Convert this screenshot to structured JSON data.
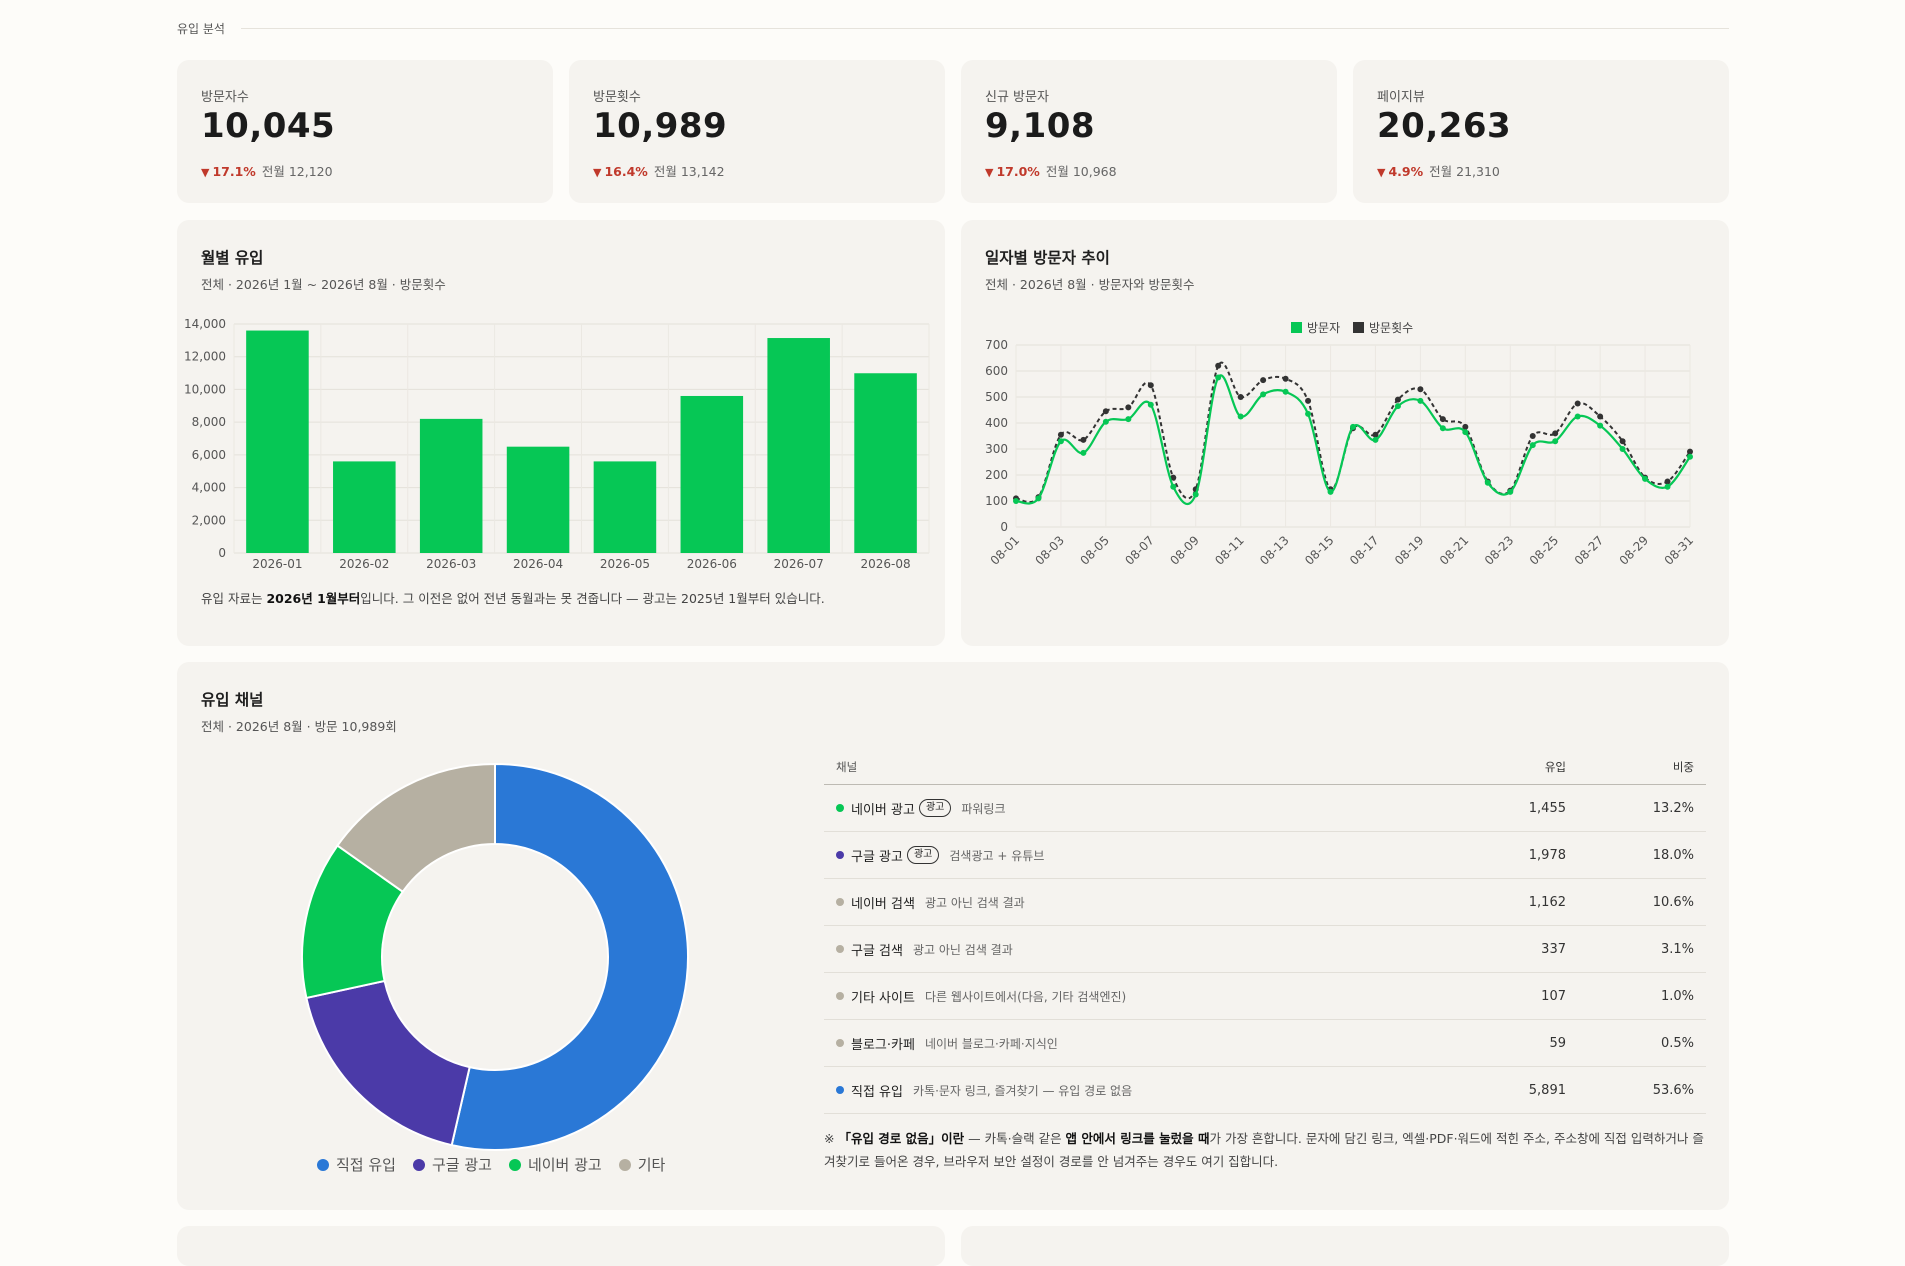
{
  "section_title": "유입 분석",
  "kpis": [
    {
      "label": "방문자수",
      "value": "10,045",
      "delta": "17.1%",
      "prev": "전월 12,120"
    },
    {
      "label": "방문횟수",
      "value": "10,989",
      "delta": "16.4%",
      "prev": "전월 13,142"
    },
    {
      "label": "신규 방문자",
      "value": "9,108",
      "delta": "17.0%",
      "prev": "전월 10,968"
    },
    {
      "label": "페이지뷰",
      "value": "20,263",
      "delta": "4.9%",
      "prev": "전월 21,310"
    }
  ],
  "monthly": {
    "title": "월별 유입",
    "subtitle": "전체 · 2026년 1월 ~ 2026년 8월 · 방문횟수",
    "note_prefix": "유입 자료는 ",
    "note_bold": "2026년 1월부터",
    "note_suffix": "입니다. 그 이전은 없어 전년 동월과는 못 견줍니다 — 광고는 2025년 1월부터 있습니다."
  },
  "daily": {
    "title": "일자별 방문자 추이",
    "subtitle": "전체 · 2026년 8월 · 방문자와 방문횟수"
  },
  "channels": {
    "title": "유입 채널",
    "subtitle": "전체 · 2026년 8월 · 방문 10,989회",
    "head": {
      "channel": "채널",
      "inflow": "유입",
      "share": "비중"
    },
    "rows": [
      {
        "name": "네이버 광고",
        "ad": "광고",
        "desc": "파워링크",
        "inflow": "1,455",
        "share": "13.2%",
        "color": "#06c755"
      },
      {
        "name": "구글 광고",
        "ad": "광고",
        "desc": "검색광고 + 유튜브",
        "inflow": "1,978",
        "share": "18.0%",
        "color": "#4b3aa8"
      },
      {
        "name": "네이버 검색",
        "ad": "",
        "desc": "광고 아닌 검색 결과",
        "inflow": "1,162",
        "share": "10.6%",
        "color": "#b6b0a2"
      },
      {
        "name": "구글 검색",
        "ad": "",
        "desc": "광고 아닌 검색 결과",
        "inflow": "337",
        "share": "3.1%",
        "color": "#b6b0a2"
      },
      {
        "name": "기타 사이트",
        "ad": "",
        "desc": "다른 웹사이트에서(다음, 기타 검색엔진)",
        "inflow": "107",
        "share": "1.0%",
        "color": "#b6b0a2"
      },
      {
        "name": "블로그·카페",
        "ad": "",
        "desc": "네이버 블로그·카페·지식인",
        "inflow": "59",
        "share": "0.5%",
        "color": "#b6b0a2"
      },
      {
        "name": "직접 유입",
        "ad": "",
        "desc": "카톡·문자 링크, 즐겨찾기 — 유입 경로 없음",
        "inflow": "5,891",
        "share": "53.6%",
        "color": "#2a78d6"
      }
    ],
    "footnote": {
      "p1": "※ ",
      "b1": "「유입 경로 없음」이란",
      "p2": " — 카톡·슬랙 같은 ",
      "b2": "앱 안에서 링크를 눌렀을 때",
      "p3": "가 가장 흔합니다. 문자에 담긴 링크, 엑셀·PDF·워드에 적힌 주소, 주소창에 직접 입력하거나 즐겨찾기로 들어온 경우, 브라우저 보안 설정이 경로를 안 넘겨주는 경우도 여기 집합니다."
    }
  },
  "chart_data": [
    {
      "type": "bar",
      "title": "월별 유입",
      "categories": [
        "2026-01",
        "2026-02",
        "2026-03",
        "2026-04",
        "2026-05",
        "2026-06",
        "2026-07",
        "2026-08"
      ],
      "values": [
        13600,
        5600,
        8200,
        6500,
        5600,
        9600,
        13142,
        10989
      ],
      "ylim": [
        0,
        14000
      ],
      "yticks": [
        0,
        2000,
        4000,
        6000,
        8000,
        10000,
        12000,
        14000
      ],
      "color": "#06c755",
      "grid": true
    },
    {
      "type": "line",
      "title": "일자별 방문자 추이",
      "x": [
        "08-01",
        "08-02",
        "08-03",
        "08-04",
        "08-05",
        "08-06",
        "08-07",
        "08-08",
        "08-09",
        "08-10",
        "08-11",
        "08-12",
        "08-13",
        "08-14",
        "08-15",
        "08-16",
        "08-17",
        "08-18",
        "08-19",
        "08-20",
        "08-21",
        "08-22",
        "08-23",
        "08-24",
        "08-25",
        "08-26",
        "08-27",
        "08-28",
        "08-29",
        "08-30",
        "08-31"
      ],
      "xticks": [
        "08-01",
        "08-03",
        "08-05",
        "08-07",
        "08-09",
        "08-11",
        "08-13",
        "08-15",
        "08-17",
        "08-19",
        "08-21",
        "08-23",
        "08-25",
        "08-27",
        "08-29",
        "08-31"
      ],
      "series": [
        {
          "name": "방문자",
          "color": "#06c755",
          "style": "solid",
          "values": [
            100,
            110,
            330,
            285,
            405,
            415,
            470,
            155,
            125,
            575,
            425,
            510,
            520,
            435,
            135,
            385,
            335,
            465,
            485,
            380,
            365,
            170,
            135,
            315,
            330,
            425,
            390,
            300,
            185,
            155,
            270
          ]
        },
        {
          "name": "방문횟수",
          "color": "#333333",
          "style": "dashed",
          "values": [
            110,
            115,
            355,
            335,
            445,
            460,
            545,
            190,
            145,
            620,
            500,
            565,
            570,
            485,
            145,
            380,
            355,
            490,
            530,
            415,
            385,
            175,
            140,
            350,
            360,
            475,
            425,
            330,
            190,
            175,
            290
          ]
        }
      ],
      "ylim": [
        0,
        700
      ],
      "yticks": [
        0,
        100,
        200,
        300,
        400,
        500,
        600,
        700
      ],
      "legend": "top-center",
      "grid": true
    },
    {
      "type": "pie",
      "title": "유입 채널",
      "labels": [
        "직접 유입",
        "구글 광고",
        "네이버 광고",
        "기타"
      ],
      "values": [
        53.6,
        18.0,
        13.2,
        15.2
      ],
      "colors": [
        "#2a78d6",
        "#4b3aa8",
        "#06c755",
        "#b6b0a2"
      ],
      "donut": true,
      "legend": "bottom"
    }
  ]
}
